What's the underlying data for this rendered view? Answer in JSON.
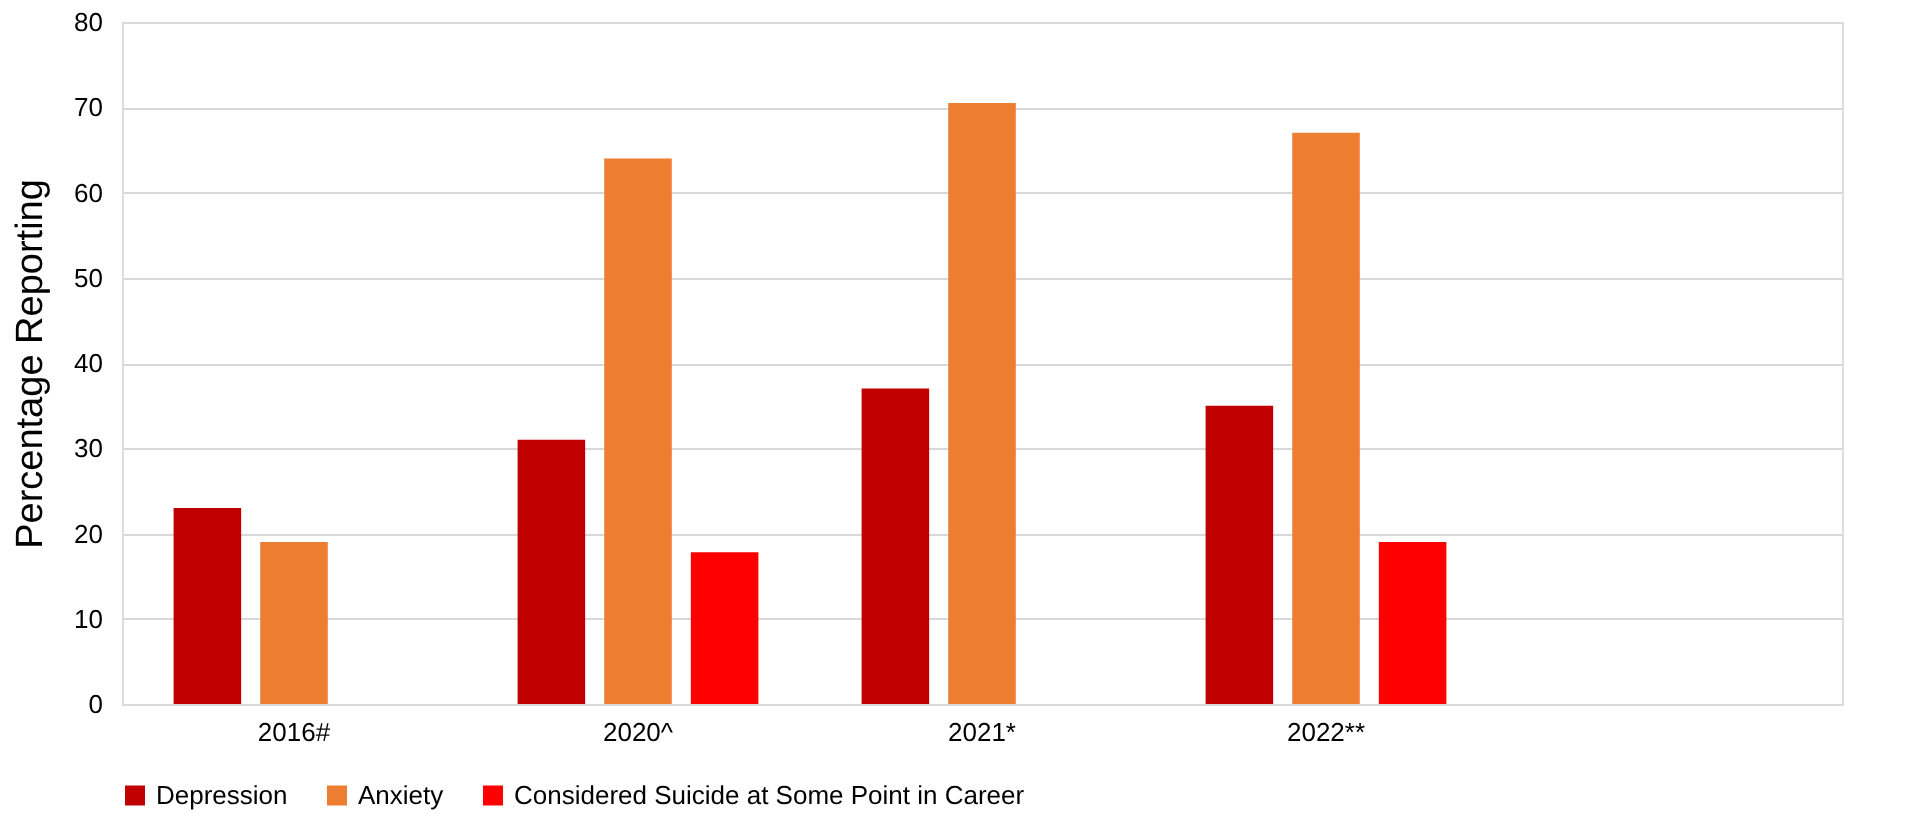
{
  "chart_data": {
    "type": "bar",
    "ylabel": "Percentage Reporting",
    "categories": [
      "2016#",
      "2020^",
      "2021*",
      "2022**",
      null
    ],
    "series": [
      {
        "name": "Depression",
        "color": "#c00000",
        "values": [
          23,
          31,
          37,
          35,
          null
        ]
      },
      {
        "name": "Anxiety",
        "color": "#ed7d31",
        "values": [
          19,
          64,
          70.5,
          67,
          null
        ]
      },
      {
        "name": "Considered Suicide at Some Point in Career",
        "color": "#ff0000",
        "values": [
          null,
          17.8,
          null,
          19,
          null
        ]
      }
    ],
    "ylim": [
      0,
      80
    ],
    "yticks": [
      0,
      10,
      20,
      30,
      40,
      50,
      60,
      70,
      80
    ],
    "grid": "y",
    "legend": "bottom"
  }
}
